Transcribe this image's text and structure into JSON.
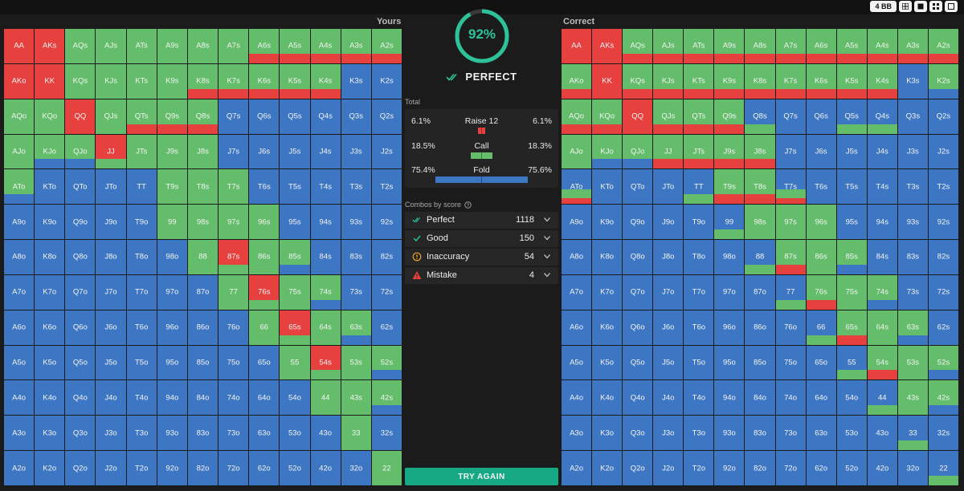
{
  "toolbar": {
    "stack_label": "4 BB"
  },
  "panels": {
    "left_title": "Yours",
    "right_title": "Correct"
  },
  "score": {
    "percent": 92,
    "percent_label": "92%",
    "verdict": "PERFECT"
  },
  "totals": {
    "section_label": "Total",
    "actions": [
      {
        "name": "Raise 12",
        "yours": "6.1%",
        "correct": "6.1%",
        "color": "#e6403f"
      },
      {
        "name": "Call",
        "yours": "18.5%",
        "correct": "18.3%",
        "color": "#63bd6a"
      },
      {
        "name": "Fold",
        "yours": "75.4%",
        "correct": "75.6%",
        "color": "#3d76c2"
      }
    ]
  },
  "combos": {
    "section_label": "Combos by score",
    "rows": [
      {
        "label": "Perfect",
        "count": "1118"
      },
      {
        "label": "Good",
        "count": "150"
      },
      {
        "label": "Inaccuracy",
        "count": "54"
      },
      {
        "label": "Mistake",
        "count": "4"
      }
    ]
  },
  "try_again_label": "TRY AGAIN",
  "colors": {
    "raise": "#e6403f",
    "call": "#63bd6a",
    "fold": "#3d76c2",
    "accent": "#17a884"
  },
  "ranks": [
    "A",
    "K",
    "Q",
    "J",
    "T",
    "9",
    "8",
    "7",
    "6",
    "5",
    "4",
    "3",
    "2"
  ],
  "yours_actions": [
    "r",
    "r",
    "g",
    "g",
    "g",
    "g",
    "g",
    "g",
    "gr",
    "gr",
    "gr",
    "gr",
    "gr",
    "r",
    "r",
    "g",
    "g",
    "g",
    "g",
    "gr",
    "gr",
    "gr",
    "gr",
    "gr",
    "b",
    "b",
    "g",
    "g",
    "r",
    "g",
    "gr",
    "gr",
    "gr",
    "b",
    "b",
    "b",
    "b",
    "b",
    "b",
    "g",
    "gb",
    "gb",
    "rg",
    "g",
    "g",
    "g",
    "b",
    "b",
    "b",
    "b",
    "b",
    "b",
    "gb",
    "b",
    "b",
    "b",
    "b",
    "g",
    "g",
    "g",
    "b",
    "b",
    "b",
    "b",
    "b",
    "b",
    "b",
    "b",
    "b",
    "b",
    "g",
    "g",
    "g",
    "g",
    "b",
    "b",
    "b",
    "b",
    "b",
    "b",
    "b",
    "b",
    "b",
    "b",
    "g",
    "rg",
    "g",
    "gb",
    "b",
    "b",
    "b",
    "b",
    "b",
    "b",
    "b",
    "b",
    "b",
    "b",
    "g",
    "rg",
    "g",
    "gb",
    "b",
    "b",
    "b",
    "b",
    "b",
    "b",
    "b",
    "b",
    "b",
    "b",
    "g",
    "rg",
    "g",
    "gb",
    "b",
    "b",
    "b",
    "b",
    "b",
    "b",
    "b",
    "b",
    "b",
    "b",
    "g",
    "rg",
    "g",
    "gb",
    "b",
    "b",
    "b",
    "b",
    "b",
    "b",
    "b",
    "b",
    "b",
    "b",
    "g",
    "g",
    "gb",
    "b",
    "b",
    "b",
    "b",
    "b",
    "b",
    "b",
    "b",
    "b",
    "b",
    "b",
    "g",
    "b",
    "b",
    "b",
    "b",
    "b",
    "b",
    "b",
    "b",
    "b",
    "b",
    "b",
    "b",
    "b",
    "g"
  ],
  "correct_actions": [
    "r",
    "r",
    "gr",
    "gr",
    "gr",
    "gr",
    "gr",
    "gr",
    "gr",
    "gr",
    "gr",
    "gr",
    "gr",
    "gr",
    "r",
    "gr",
    "gr",
    "gr",
    "gr",
    "gr",
    "gr",
    "gr",
    "gr",
    "gr",
    "b",
    "gb",
    "gr",
    "gr",
    "r",
    "gr",
    "gr",
    "gr",
    "bg",
    "b",
    "b",
    "bg",
    "bg",
    "b",
    "b",
    "g",
    "gb",
    "gb",
    "gr",
    "gr",
    "gr",
    "gr",
    "b",
    "b",
    "b",
    "b",
    "b",
    "b",
    "bgr",
    "b",
    "b",
    "b",
    "bg",
    "gr",
    "gr",
    "bgr",
    "b",
    "b",
    "b",
    "b",
    "b",
    "b",
    "b",
    "b",
    "b",
    "b",
    "bg",
    "g",
    "g",
    "g",
    "b",
    "b",
    "b",
    "b",
    "b",
    "b",
    "b",
    "b",
    "b",
    "b",
    "bg",
    "gr",
    "g",
    "gb",
    "b",
    "b",
    "b",
    "b",
    "b",
    "b",
    "b",
    "b",
    "b",
    "b",
    "bg",
    "gr",
    "g",
    "gb",
    "b",
    "b",
    "b",
    "b",
    "b",
    "b",
    "b",
    "b",
    "b",
    "b",
    "bg",
    "gr",
    "g",
    "gb",
    "b",
    "b",
    "b",
    "b",
    "b",
    "b",
    "b",
    "b",
    "b",
    "b",
    "bg",
    "gr",
    "g",
    "gb",
    "b",
    "b",
    "b",
    "b",
    "b",
    "b",
    "b",
    "b",
    "b",
    "b",
    "bg",
    "g",
    "gb",
    "b",
    "b",
    "b",
    "b",
    "b",
    "b",
    "b",
    "b",
    "b",
    "b",
    "b",
    "bg",
    "b",
    "b",
    "b",
    "b",
    "b",
    "b",
    "b",
    "b",
    "b",
    "b",
    "b",
    "b",
    "b",
    "bg"
  ]
}
